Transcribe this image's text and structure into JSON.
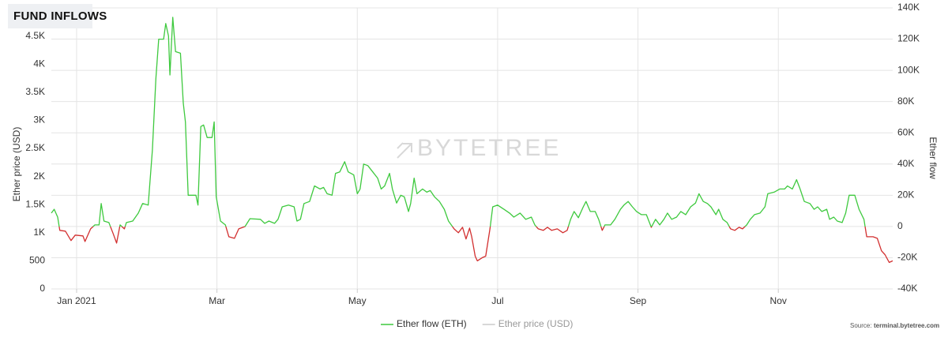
{
  "chart_data": {
    "type": "line",
    "title": "FUND INFLOWS",
    "watermark": "BYTETREE",
    "y_label": "Ether price (USD)",
    "y2_label": "Ether flow",
    "source_label": "Source:",
    "source": "terminal.bytetree.com",
    "xlim": [
      -0.36,
      11.63
    ],
    "xticks": [
      {
        "value": 0,
        "label": "Jan 2021"
      },
      {
        "value": 2,
        "label": "Mar"
      },
      {
        "value": 4,
        "label": "May"
      },
      {
        "value": 6,
        "label": "Jul"
      },
      {
        "value": 8,
        "label": "Sep"
      },
      {
        "value": 10,
        "label": "Nov"
      }
    ],
    "ylim": [
      0,
      5000
    ],
    "yticks": [
      0,
      500,
      {
        "value": 1000,
        "label": "1K"
      },
      {
        "value": 1500,
        "label": "1.5K"
      },
      {
        "value": 2000,
        "label": "2K"
      },
      {
        "value": 2500,
        "label": "2.5K"
      },
      {
        "value": 3000,
        "label": "3K"
      },
      {
        "value": 3500,
        "label": "3.5K"
      },
      {
        "value": 4000,
        "label": "4K"
      },
      {
        "value": 4500,
        "label": "4.5K"
      }
    ],
    "y2lim": [
      -40000,
      140000
    ],
    "y2ticks": [
      {
        "value": -40000,
        "label": "-40K"
      },
      {
        "value": -20000,
        "label": "-20K"
      },
      0,
      {
        "value": 20000,
        "label": "20K"
      },
      {
        "value": 40000,
        "label": "40K"
      },
      {
        "value": 60000,
        "label": "60K"
      },
      {
        "value": 80000,
        "label": "80K"
      },
      {
        "value": 100000,
        "label": "100K"
      },
      {
        "value": 120000,
        "label": "120K"
      },
      {
        "value": 140000,
        "label": "140K"
      }
    ],
    "grid": true,
    "x": [
      -0.36,
      -0.32,
      -0.27,
      -0.24,
      -0.16,
      -0.08,
      -0.02,
      0.09,
      0.12,
      0.2,
      0.26,
      0.32,
      0.35,
      0.39,
      0.46,
      0.52,
      0.57,
      0.62,
      0.68,
      0.71,
      0.8,
      0.88,
      0.94,
      1.02,
      1.08,
      1.13,
      1.17,
      1.24,
      1.27,
      1.31,
      1.33,
      1.37,
      1.41,
      1.48,
      1.52,
      1.55,
      1.59,
      1.7,
      1.73,
      1.77,
      1.81,
      1.86,
      1.93,
      1.96,
      1.99,
      2.05,
      2.12,
      2.17,
      2.25,
      2.31,
      2.4,
      2.47,
      2.62,
      2.68,
      2.74,
      2.82,
      2.87,
      2.93,
      3.02,
      3.1,
      3.14,
      3.19,
      3.24,
      3.32,
      3.39,
      3.47,
      3.52,
      3.57,
      3.64,
      3.69,
      3.75,
      3.82,
      3.87,
      3.95,
      4.0,
      4.04,
      4.09,
      4.15,
      4.22,
      4.29,
      4.34,
      4.39,
      4.46,
      4.5,
      4.56,
      4.62,
      4.67,
      4.73,
      4.76,
      4.81,
      4.85,
      4.93,
      4.99,
      5.04,
      5.1,
      5.17,
      5.24,
      5.3,
      5.38,
      5.44,
      5.5,
      5.55,
      5.6,
      5.63,
      5.68,
      5.71,
      5.78,
      5.83,
      5.89,
      5.93,
      6.0,
      6.09,
      6.17,
      6.23,
      6.32,
      6.4,
      6.48,
      6.53,
      6.58,
      6.65,
      6.71,
      6.77,
      6.85,
      6.93,
      6.99,
      7.04,
      7.09,
      7.15,
      7.22,
      7.26,
      7.32,
      7.39,
      7.44,
      7.49,
      7.53,
      7.61,
      7.67,
      7.75,
      7.8,
      7.86,
      7.92,
      7.98,
      8.05,
      8.12,
      8.19,
      8.25,
      8.31,
      8.37,
      8.42,
      8.48,
      8.55,
      8.61,
      8.68,
      8.75,
      8.82,
      8.87,
      8.93,
      8.99,
      9.04,
      9.11,
      9.15,
      9.21,
      9.27,
      9.32,
      9.38,
      9.44,
      9.49,
      9.55,
      9.6,
      9.66,
      9.74,
      9.81,
      9.85,
      9.94,
      10.02,
      10.09,
      10.13,
      10.2,
      10.26,
      10.31,
      10.37,
      10.45,
      10.51,
      10.56,
      10.62,
      10.69,
      10.73,
      10.79,
      10.84,
      10.91,
      10.96,
      11.01,
      11.09,
      11.15,
      11.22,
      11.26,
      11.35,
      11.41,
      11.47,
      11.52,
      11.58,
      11.63
    ],
    "series": [
      {
        "name": "Ether flow (ETH)",
        "color": "#3ec93e",
        "negative_color": "#d22f2f",
        "axis": "y2",
        "visible": true,
        "values": [
          8600,
          11000,
          6000,
          -2500,
          -3000,
          -9000,
          -5500,
          -6000,
          -9600,
          -1500,
          1000,
          1000,
          14700,
          3500,
          2500,
          -4500,
          -10600,
          1000,
          -1500,
          2500,
          3500,
          8600,
          14700,
          13700,
          49000,
          94600,
          120000,
          120000,
          130000,
          122000,
          97000,
          134000,
          112000,
          111000,
          79000,
          67000,
          20000,
          20000,
          13700,
          64000,
          65000,
          57000,
          57000,
          67000,
          19000,
          3500,
          1000,
          -6600,
          -7600,
          -1500,
          0,
          5000,
          4600,
          2000,
          3500,
          2000,
          4600,
          12600,
          13700,
          12600,
          3500,
          4600,
          14700,
          16000,
          26000,
          24000,
          25000,
          21000,
          20000,
          34000,
          35000,
          41500,
          35000,
          33000,
          21000,
          24000,
          40000,
          39000,
          35000,
          31000,
          24000,
          26000,
          34000,
          24000,
          15000,
          20000,
          19000,
          9600,
          14700,
          31000,
          21000,
          24000,
          22000,
          23000,
          19000,
          16000,
          11000,
          3500,
          -1500,
          -4000,
          -500,
          -8000,
          -1000,
          -6600,
          -19000,
          -22000,
          -20000,
          -19000,
          -1500,
          12600,
          13700,
          11000,
          8600,
          6000,
          8600,
          4600,
          6000,
          1000,
          -1500,
          -2500,
          -500,
          -2500,
          -1500,
          -4000,
          -2500,
          4600,
          9600,
          5600,
          12600,
          16000,
          9600,
          9600,
          4600,
          -2500,
          1000,
          1000,
          4600,
          11000,
          13700,
          16000,
          12600,
          9600,
          7600,
          7600,
          -500,
          4600,
          1000,
          4600,
          8600,
          4600,
          6000,
          9600,
          7600,
          12600,
          15000,
          21000,
          16000,
          14700,
          12600,
          7600,
          11000,
          4600,
          2500,
          -1500,
          -2500,
          -500,
          -1500,
          1000,
          4600,
          7600,
          8600,
          12600,
          21000,
          22000,
          24000,
          24000,
          26000,
          24000,
          30000,
          24000,
          16000,
          14700,
          11000,
          12600,
          9600,
          11000,
          4600,
          6000,
          3500,
          2500,
          8600,
          20000,
          20000,
          11000,
          4600,
          -6600,
          -6600,
          -7600,
          -15600,
          -18000,
          -23000,
          -22000
        ]
      },
      {
        "name": "Ether price (USD)",
        "color": "#cccccc",
        "axis": "y",
        "visible": false
      }
    ]
  }
}
